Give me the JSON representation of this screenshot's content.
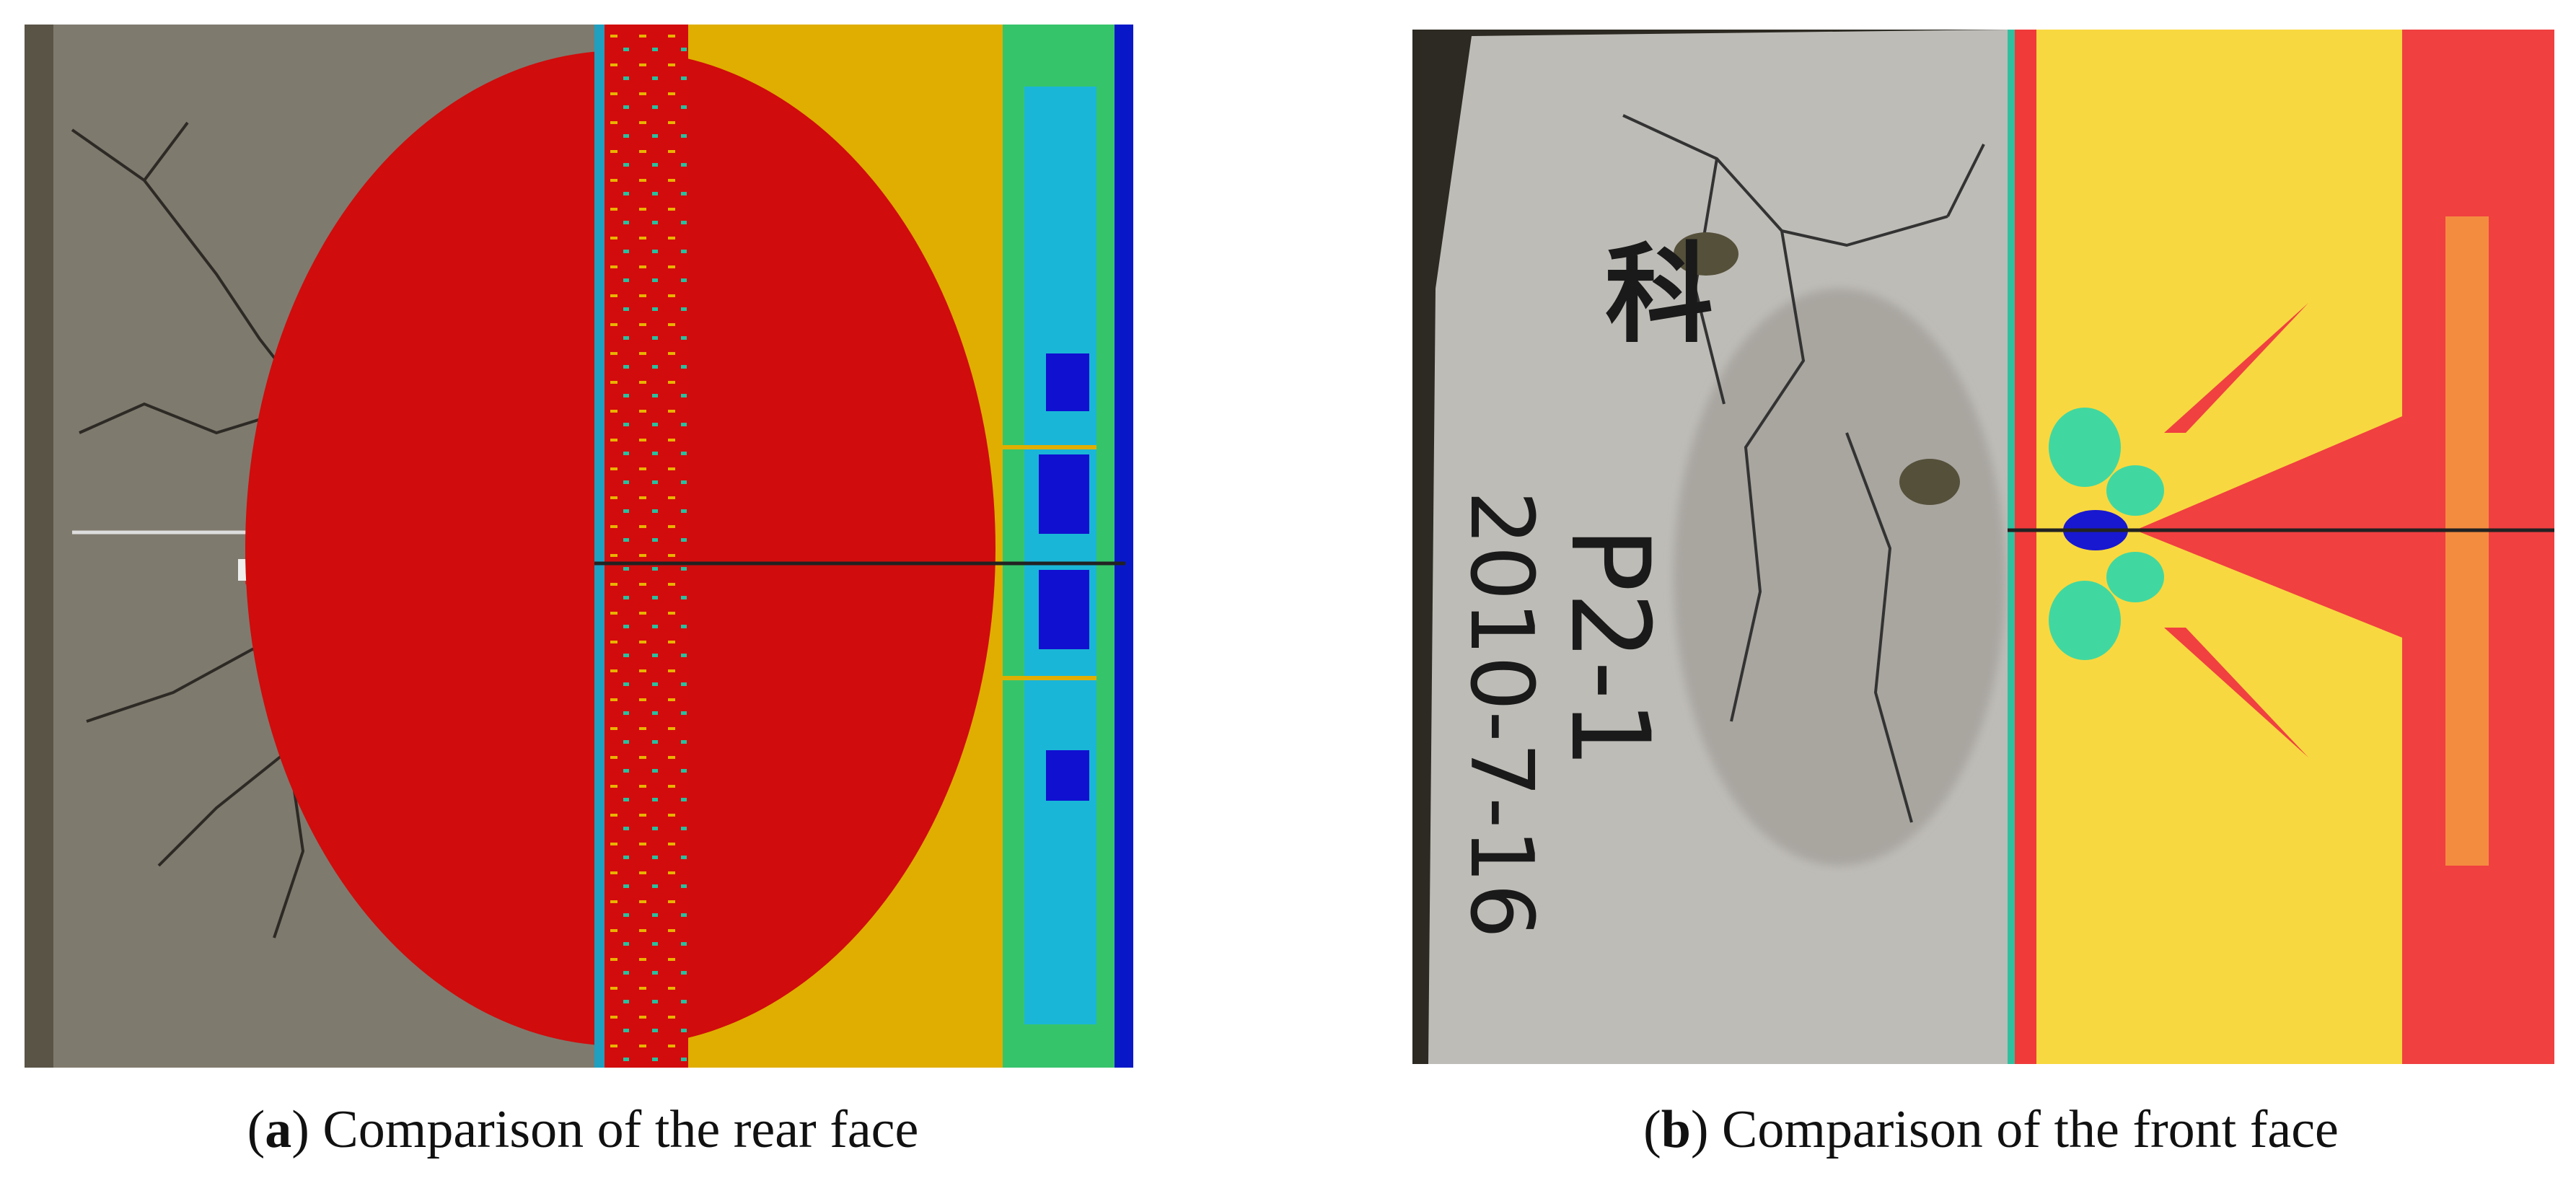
{
  "figure": {
    "panels": [
      {
        "open": "(",
        "label": "a",
        "text": ") Comparison of the rear face"
      },
      {
        "open": "(",
        "label": "b",
        "text": ") Comparison of the front face",
        "photo_text": [
          "科",
          "P2-1",
          "2010-7-16"
        ]
      }
    ]
  }
}
